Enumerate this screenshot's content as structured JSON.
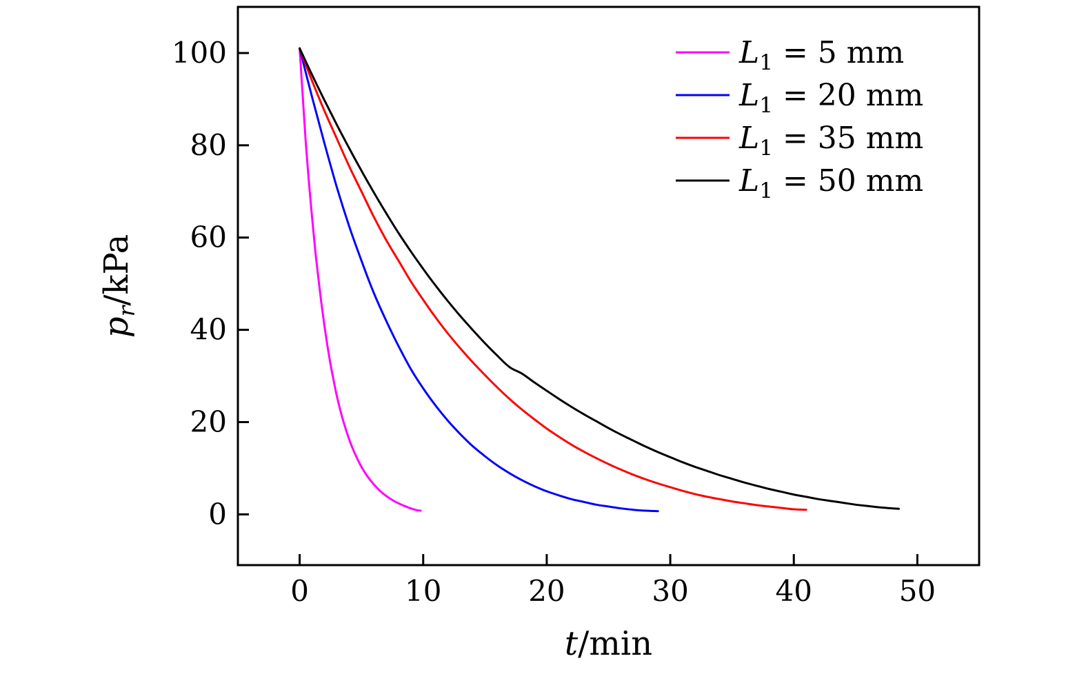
{
  "chart_data": {
    "type": "line",
    "title": "",
    "xlabel": {
      "var": "t",
      "rest": "/min"
    },
    "ylabel": {
      "var": "p",
      "sub": "r",
      "rest": "/kPa"
    },
    "xlim": [
      -5,
      55
    ],
    "ylim": [
      -11,
      110
    ],
    "x_ticks": [
      0,
      10,
      20,
      30,
      40,
      50
    ],
    "y_ticks": [
      0,
      20,
      40,
      60,
      80,
      100
    ],
    "grid": false,
    "legend_position": "top-right",
    "frame_color": "#000000",
    "background": "#ffffff",
    "series": [
      {
        "label": {
          "var": "L",
          "sub": "1",
          "rest": " = 5 mm"
        },
        "color": "#ff00ff",
        "points": [
          [
            0,
            101
          ],
          [
            0.25,
            90.5
          ],
          [
            0.5,
            80.5
          ],
          [
            0.75,
            72
          ],
          [
            1,
            64.5
          ],
          [
            1.25,
            57.5
          ],
          [
            1.5,
            51.5
          ],
          [
            1.75,
            46
          ],
          [
            2,
            41
          ],
          [
            2.25,
            36.5
          ],
          [
            2.5,
            32.5
          ],
          [
            2.75,
            29
          ],
          [
            3,
            25.8
          ],
          [
            3.25,
            23
          ],
          [
            3.5,
            20.5
          ],
          [
            4,
            16.3
          ],
          [
            4.5,
            13
          ],
          [
            5,
            10.3
          ],
          [
            5.5,
            8.2
          ],
          [
            6,
            6.5
          ],
          [
            6.5,
            5.1
          ],
          [
            7,
            4
          ],
          [
            7.5,
            3.1
          ],
          [
            8,
            2.4
          ],
          [
            8.5,
            1.8
          ],
          [
            9,
            1.3
          ],
          [
            9.5,
            0.9
          ],
          [
            9.8,
            0.8
          ]
        ]
      },
      {
        "label": {
          "var": "L",
          "sub": "1",
          "rest": " = 20 mm"
        },
        "color": "#0000ff",
        "points": [
          [
            0,
            101
          ],
          [
            1,
            90.5
          ],
          [
            2,
            80.5
          ],
          [
            3,
            71
          ],
          [
            4,
            62.5
          ],
          [
            5,
            55
          ],
          [
            6,
            48
          ],
          [
            7,
            42
          ],
          [
            8,
            36.5
          ],
          [
            9,
            31.5
          ],
          [
            10,
            27.3
          ],
          [
            11,
            23.6
          ],
          [
            12,
            20.3
          ],
          [
            13,
            17.4
          ],
          [
            14,
            14.8
          ],
          [
            15,
            12.6
          ],
          [
            16,
            10.6
          ],
          [
            17,
            8.9
          ],
          [
            18,
            7.4
          ],
          [
            19,
            6.1
          ],
          [
            20,
            5
          ],
          [
            21,
            4.1
          ],
          [
            22,
            3.3
          ],
          [
            23,
            2.7
          ],
          [
            24,
            2.1
          ],
          [
            25,
            1.7
          ],
          [
            26,
            1.3
          ],
          [
            27,
            1
          ],
          [
            28,
            0.8
          ],
          [
            29,
            0.7
          ]
        ]
      },
      {
        "label": {
          "var": "L",
          "sub": "1",
          "rest": " = 35 mm"
        },
        "color": "#ff0000",
        "points": [
          [
            0,
            101
          ],
          [
            1,
            94
          ],
          [
            2,
            87.5
          ],
          [
            3,
            81.5
          ],
          [
            4,
            75.5
          ],
          [
            5,
            70
          ],
          [
            6,
            64.5
          ],
          [
            7,
            59.5
          ],
          [
            8,
            55
          ],
          [
            9,
            50.5
          ],
          [
            10,
            46.5
          ],
          [
            11,
            42.7
          ],
          [
            12,
            39.2
          ],
          [
            13,
            36
          ],
          [
            14,
            33
          ],
          [
            15,
            30.2
          ],
          [
            16,
            27.5
          ],
          [
            17,
            25
          ],
          [
            18,
            22.7
          ],
          [
            19,
            20.6
          ],
          [
            20,
            18.6
          ],
          [
            21,
            16.8
          ],
          [
            22,
            15.1
          ],
          [
            23,
            13.6
          ],
          [
            24,
            12.2
          ],
          [
            25,
            10.9
          ],
          [
            26,
            9.7
          ],
          [
            27,
            8.6
          ],
          [
            28,
            7.6
          ],
          [
            29,
            6.7
          ],
          [
            30,
            5.9
          ],
          [
            31,
            5.1
          ],
          [
            32,
            4.4
          ],
          [
            33,
            3.8
          ],
          [
            34,
            3.3
          ],
          [
            35,
            2.8
          ],
          [
            36,
            2.4
          ],
          [
            37,
            2
          ],
          [
            38,
            1.7
          ],
          [
            39,
            1.4
          ],
          [
            40,
            1.1
          ],
          [
            41,
            1
          ]
        ]
      },
      {
        "label": {
          "var": "L",
          "sub": "1",
          "rest": " = 50 mm"
        },
        "color": "#000000",
        "points": [
          [
            0,
            101
          ],
          [
            1,
            95.3
          ],
          [
            2,
            89.8
          ],
          [
            3,
            84.5
          ],
          [
            4,
            79.4
          ],
          [
            5,
            74.5
          ],
          [
            6,
            69.8
          ],
          [
            7,
            65.3
          ],
          [
            8,
            61
          ],
          [
            9,
            57
          ],
          [
            10,
            53.2
          ],
          [
            11,
            49.6
          ],
          [
            12,
            46.2
          ],
          [
            13,
            43
          ],
          [
            14,
            40
          ],
          [
            15,
            37.1
          ],
          [
            16,
            34.4
          ],
          [
            17,
            31.9
          ],
          [
            18,
            30.5
          ],
          [
            19,
            28.6
          ],
          [
            20,
            26.8
          ],
          [
            21,
            25
          ],
          [
            22,
            23.3
          ],
          [
            23,
            21.7
          ],
          [
            24,
            20.2
          ],
          [
            25,
            18.7
          ],
          [
            26,
            17.3
          ],
          [
            27,
            16
          ],
          [
            28,
            14.7
          ],
          [
            29,
            13.5
          ],
          [
            30,
            12.4
          ],
          [
            31,
            11.3
          ],
          [
            32,
            10.3
          ],
          [
            33,
            9.4
          ],
          [
            34,
            8.5
          ],
          [
            35,
            7.7
          ],
          [
            36,
            6.9
          ],
          [
            37,
            6.2
          ],
          [
            38,
            5.5
          ],
          [
            39,
            4.9
          ],
          [
            40,
            4.3
          ],
          [
            41,
            3.8
          ],
          [
            42,
            3.3
          ],
          [
            43,
            2.9
          ],
          [
            44,
            2.5
          ],
          [
            45,
            2.1
          ],
          [
            46,
            1.8
          ],
          [
            47,
            1.5
          ],
          [
            48,
            1.3
          ],
          [
            48.5,
            1.2
          ]
        ]
      }
    ]
  }
}
